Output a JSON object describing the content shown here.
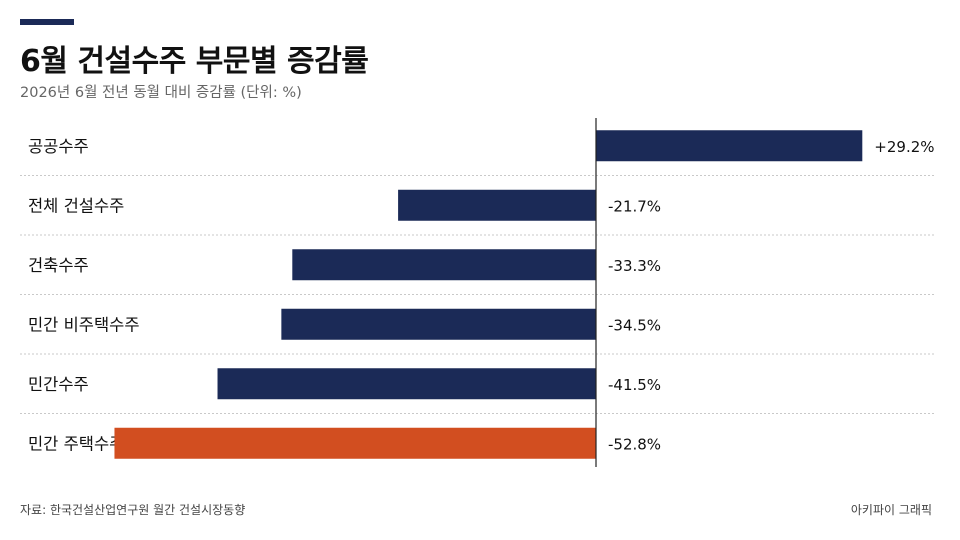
{
  "header": {
    "title": "6월 건설수주 부문별 증감률",
    "subtitle": "2026년 6월 전년 동월 대비 증감률 (단위: %)"
  },
  "footer": {
    "source": "자료: 한국건설산업연구원 월간 건설시장동향",
    "credit": "아키파이 그래픽"
  },
  "colors": {
    "accent": "#1b2a57",
    "bar_default": "#1b2a57",
    "bar_highlight": "#d24e20"
  },
  "chart_data": {
    "type": "bar",
    "orientation": "horizontal",
    "categories": [
      "공공수주",
      "전체 건설수주",
      "건축수주",
      "민간 비주택수주",
      "민간수주",
      "민간 주택수주"
    ],
    "values": [
      29.2,
      -21.7,
      -33.3,
      -34.5,
      -41.5,
      -52.8
    ],
    "value_labels": [
      "+29.2%",
      "-21.7%",
      "-33.3%",
      "-34.5%",
      "-41.5%",
      "-52.8%"
    ],
    "highlight_index": 5,
    "title": "6월 건설수주 부문별 증감률",
    "subtitle": "2026년 6월 전년 동월 대비 증감률 (단위: %)",
    "xlabel": "",
    "ylabel": "",
    "xlim": [
      -60,
      30
    ],
    "grid": false,
    "legend": "none"
  }
}
